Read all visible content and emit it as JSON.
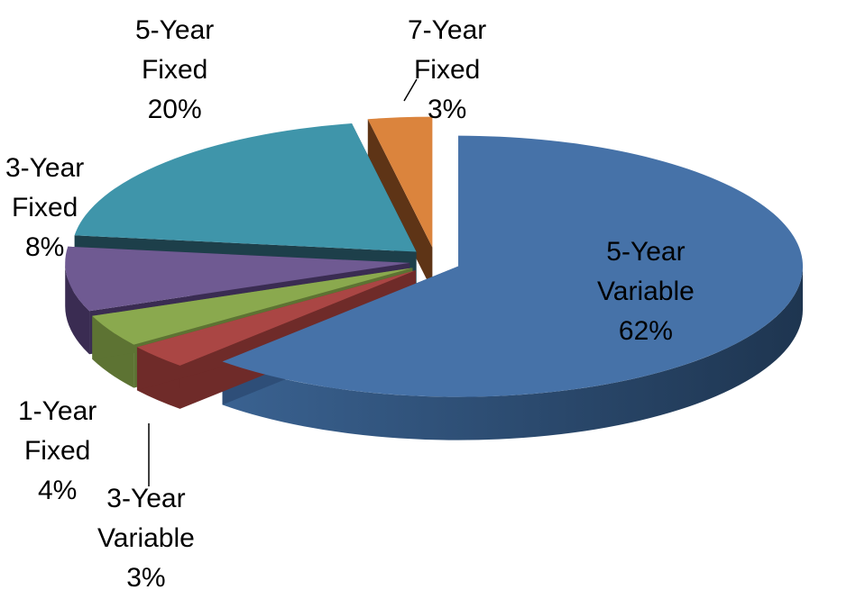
{
  "chart_data": {
    "type": "pie",
    "title": "",
    "style": "3d-exploded",
    "slices": [
      {
        "label_lines": [
          "5-Year",
          "Variable",
          "62%"
        ],
        "value": 62,
        "color": "#4672A8",
        "side_color": "#2E4E78"
      },
      {
        "label_lines": [
          "3-Year",
          "Variable",
          "3%"
        ],
        "value": 3,
        "color": "#AA4644",
        "side_color": "#6F2B29"
      },
      {
        "label_lines": [
          "1-Year",
          "Fixed",
          "4%"
        ],
        "value": 4,
        "color": "#8AA94E",
        "side_color": "#5D7333"
      },
      {
        "label_lines": [
          "3-Year",
          "Fixed",
          "8%"
        ],
        "value": 8,
        "color": "#6F5A92",
        "side_color": "#3A2C52"
      },
      {
        "label_lines": [
          "5-Year",
          "Fixed",
          "20%"
        ],
        "value": 20,
        "color": "#3F95AA",
        "side_color": "#1D3F4A"
      },
      {
        "label_lines": [
          "7-Year",
          "Fixed",
          "3%"
        ],
        "value": 3,
        "color": "#DB843D",
        "side_color": "#5E3416"
      }
    ]
  }
}
